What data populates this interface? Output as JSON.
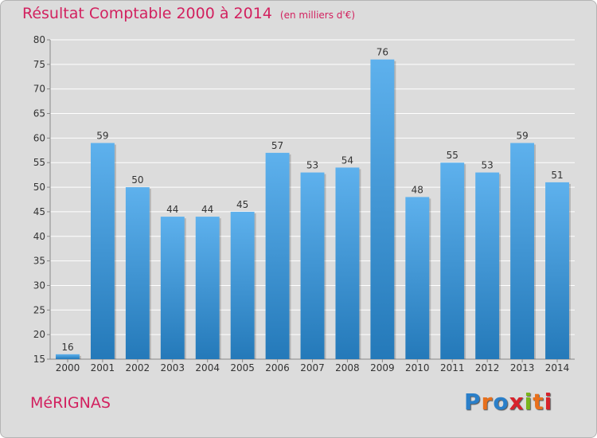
{
  "header": {
    "title": "Résultat Comptable 2000 à 2014",
    "subtitle": "(en milliers d'€)"
  },
  "footer": {
    "commune": "MéRIGNAS",
    "logo_letters": [
      "P",
      "r",
      "o",
      "x",
      "i",
      "t",
      "i"
    ],
    "logo_colors": [
      "#2a7fc9",
      "#e8701c",
      "#2a7fc9",
      "#d8222c",
      "#7ab51d",
      "#e8701c",
      "#d8222c"
    ]
  },
  "colors": {
    "bar_top": "#5eb1ed",
    "bar_bottom": "#2479b9",
    "grid": "#ffffff",
    "text": "#333333",
    "accent": "#d2215f",
    "background": "#dcdcdc"
  },
  "chart_data": {
    "type": "bar",
    "title": "Résultat Comptable 2000 à 2014",
    "subtitle": "(en milliers d'€)",
    "categories": [
      "2000",
      "2001",
      "2002",
      "2003",
      "2004",
      "2005",
      "2006",
      "2007",
      "2008",
      "2009",
      "2010",
      "2011",
      "2012",
      "2013",
      "2014"
    ],
    "values": [
      16,
      59,
      50,
      44,
      44,
      45,
      57,
      53,
      54,
      76,
      48,
      55,
      53,
      59,
      51
    ],
    "xlabel": "",
    "ylabel": "",
    "ylim": [
      15,
      80
    ],
    "yticks": [
      15,
      20,
      25,
      30,
      35,
      40,
      45,
      50,
      55,
      60,
      65,
      70,
      75,
      80
    ],
    "grid": true,
    "legend": "none"
  }
}
